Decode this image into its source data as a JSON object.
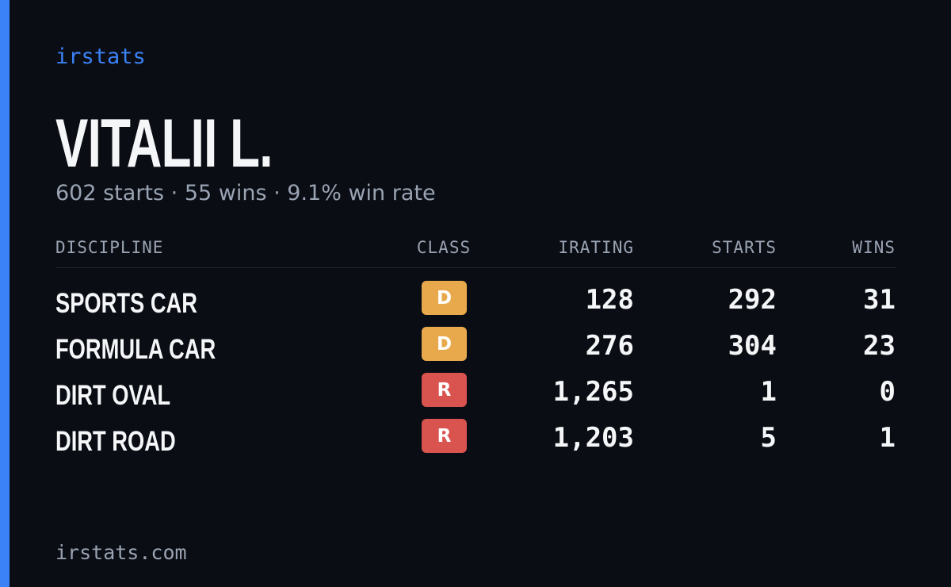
{
  "brand": "irstats",
  "profile": {
    "name": "VITALII L.",
    "summary": "602 starts · 55 wins · 9.1% win rate"
  },
  "table": {
    "headers": [
      "DISCIPLINE",
      "CLASS",
      "IRATING",
      "STARTS",
      "WINS"
    ],
    "rows": [
      {
        "discipline": "SPORTS CAR",
        "class": "D",
        "class_color": "#e8a94c",
        "irating": "128",
        "starts": "292",
        "wins": "31"
      },
      {
        "discipline": "FORMULA CAR",
        "class": "D",
        "class_color": "#e8a94c",
        "irating": "276",
        "starts": "304",
        "wins": "23"
      },
      {
        "discipline": "DIRT OVAL",
        "class": "R",
        "class_color": "#d9534f",
        "irating": "1,265",
        "starts": "1",
        "wins": "0"
      },
      {
        "discipline": "DIRT ROAD",
        "class": "R",
        "class_color": "#d9534f",
        "irating": "1,203",
        "starts": "5",
        "wins": "1"
      }
    ]
  },
  "footer": "irstats.com"
}
